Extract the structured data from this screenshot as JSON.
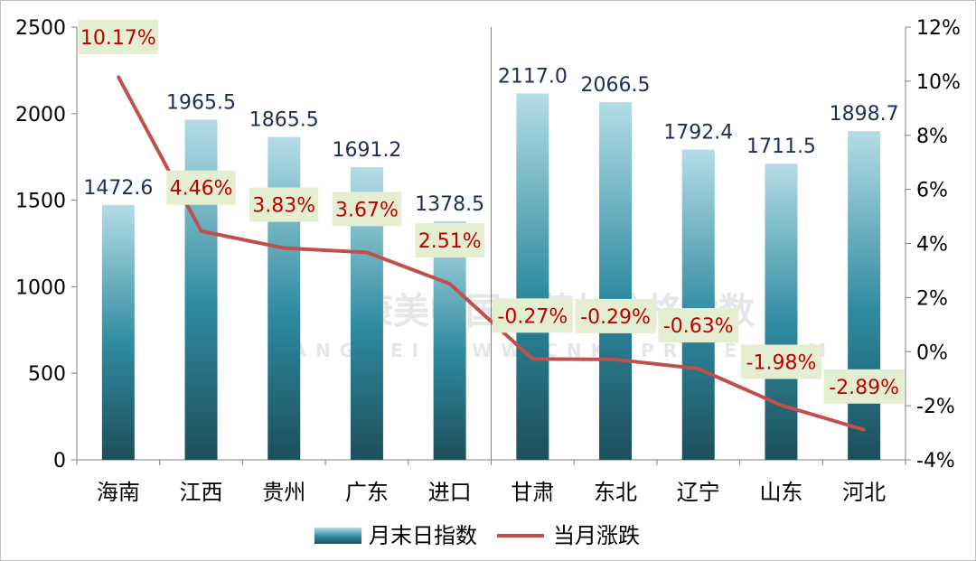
{
  "chart_data": {
    "type": "bar",
    "categories": [
      "海南",
      "江西",
      "贵州",
      "广东",
      "进口",
      "甘肃",
      "东北",
      "辽宁",
      "山东",
      "河北"
    ],
    "series": [
      {
        "name": "月末日指数",
        "kind": "bar",
        "axis": "left",
        "values": [
          1472.6,
          1965.5,
          1865.5,
          1691.2,
          1378.5,
          2117.0,
          2066.5,
          1792.4,
          1711.5,
          1898.7
        ],
        "labels": [
          "1472.6",
          "1965.5",
          "1865.5",
          "1691.2",
          "1378.5",
          "2117.0",
          "2066.5",
          "1792.4",
          "1711.5",
          "1898.7"
        ]
      },
      {
        "name": "当月涨跌",
        "kind": "line",
        "axis": "right",
        "values": [
          10.17,
          4.46,
          3.83,
          3.67,
          2.51,
          -0.27,
          -0.29,
          -0.63,
          -1.98,
          -2.89
        ],
        "labels": [
          "10.17%",
          "4.46%",
          "3.83%",
          "3.67%",
          "2.51%",
          "-0.27%",
          "-0.29%",
          "-0.63%",
          "-1.98%",
          "-2.89%"
        ]
      }
    ],
    "y_left": {
      "ylim": [
        0,
        2500
      ],
      "ticks": [
        "0",
        "500",
        "1000",
        "1500",
        "2000",
        "2500"
      ]
    },
    "y_right": {
      "ylim": [
        -4,
        12
      ],
      "ticks": [
        "-4%",
        "-2%",
        "0%",
        "2%",
        "4%",
        "6%",
        "8%",
        "10%",
        "12%"
      ]
    },
    "divider_after_category": 4,
    "legend_position": "bottom",
    "grid": false,
    "colors": {
      "bar_top": "#b4dde6",
      "bar_mid": "#2e8aa0",
      "bar_bottom": "#1d4f5c",
      "line": "#c0504d",
      "bar_label": "#1f2d5a",
      "pct_label": "#c00000",
      "pct_label_bg": "#e4efd2"
    },
    "watermark": {
      "main": "康美中国中药材价格指数",
      "sub": "KANGMEI WWW.CNKMPRICE.COM"
    }
  }
}
